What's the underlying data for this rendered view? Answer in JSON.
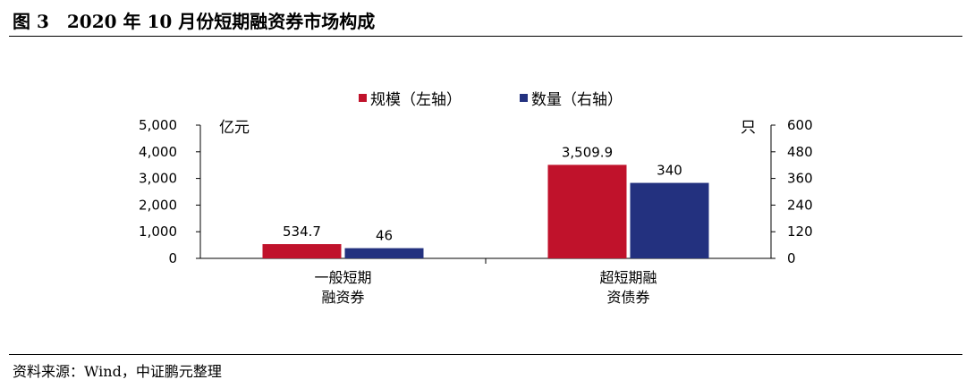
{
  "header": {
    "title": "图 3　2020 年 10 月份短期融资券市场构成"
  },
  "footer": {
    "source": "资料来源：Wind，中证鹏元整理"
  },
  "chart_data": {
    "type": "bar",
    "categories": [
      [
        "一般短期",
        "融资券"
      ],
      [
        "超短期融",
        "资债券"
      ]
    ],
    "series": [
      {
        "name": "规模（左轴）",
        "axis": "left",
        "color": "#C0122B",
        "values": [
          534.7,
          3509.9
        ],
        "labels": [
          "534.7",
          "3,509.9"
        ]
      },
      {
        "name": "数量（右轴）",
        "axis": "right",
        "color": "#23317F",
        "values": [
          46,
          340
        ],
        "labels": [
          "46",
          "340"
        ]
      }
    ],
    "left_axis": {
      "unit": "亿元",
      "ylim": [
        0,
        5000
      ],
      "ticks": [
        0,
        1000,
        2000,
        3000,
        4000,
        5000
      ],
      "tick_labels": [
        "0",
        "1,000",
        "2,000",
        "3,000",
        "4,000",
        "5,000"
      ]
    },
    "right_axis": {
      "unit": "只",
      "ylim": [
        0,
        600
      ],
      "ticks": [
        0,
        120,
        240,
        360,
        480,
        600
      ],
      "tick_labels": [
        "0",
        "120",
        "240",
        "360",
        "480",
        "600"
      ]
    },
    "grid": false,
    "legend": "top-center"
  }
}
